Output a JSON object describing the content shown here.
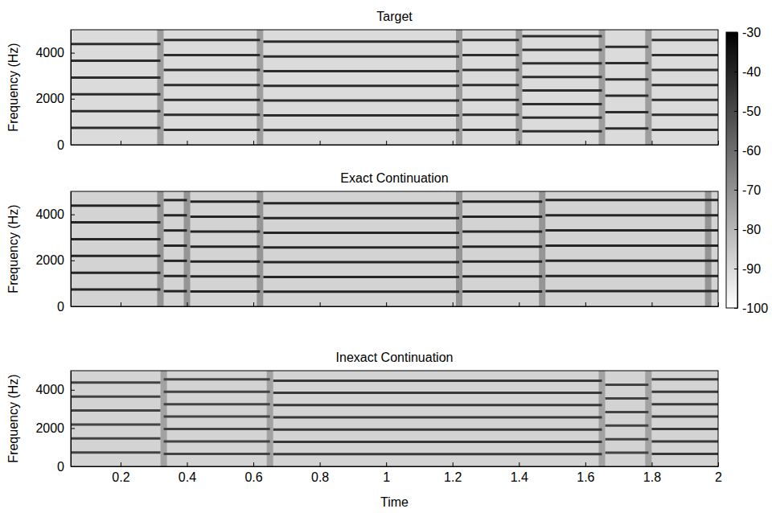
{
  "chart_data": [
    {
      "type": "spectrogram",
      "title": "Target",
      "y_label": "Frequency (Hz)",
      "xlim": [
        0.05,
        2
      ],
      "xticks": [
        0.2,
        0.4,
        0.6,
        0.8,
        1,
        1.2,
        1.4,
        1.6,
        1.8,
        2
      ],
      "ylim": [
        0,
        5000
      ],
      "yticks": [
        0,
        2000,
        4000
      ],
      "tick_labels": "y",
      "floor": -90,
      "onset_level": -70,
      "onsets": [
        0.32,
        0.62,
        1.22,
        1.4,
        1.65,
        1.79
      ],
      "notes": [
        {
          "start": 0.05,
          "end": 0.32,
          "level": -42,
          "harmonics": [
            730,
            1460,
            2190,
            2920,
            3650,
            4380
          ]
        },
        {
          "start": 0.33,
          "end": 0.62,
          "level": -42,
          "harmonics": [
            650,
            1300,
            1950,
            2600,
            3250,
            3900,
            4550
          ]
        },
        {
          "start": 0.63,
          "end": 1.22,
          "level": -42,
          "harmonics": [
            640,
            1280,
            1920,
            2560,
            3200,
            3840,
            4480
          ]
        },
        {
          "start": 1.23,
          "end": 1.4,
          "level": -42,
          "harmonics": [
            650,
            1300,
            1950,
            2600,
            3250,
            3900,
            4550
          ]
        },
        {
          "start": 1.41,
          "end": 1.65,
          "level": -42,
          "harmonics": [
            590,
            1180,
            1770,
            2360,
            2950,
            3540,
            4130,
            4720
          ]
        },
        {
          "start": 1.66,
          "end": 1.79,
          "level": -42,
          "harmonics": [
            710,
            1420,
            2130,
            2840,
            3550,
            4260
          ]
        },
        {
          "start": 1.8,
          "end": 2,
          "level": -42,
          "harmonics": [
            650,
            1300,
            1950,
            2600,
            3250,
            3900,
            4550
          ]
        }
      ],
      "colorbar": {
        "range": [
          -100,
          -30
        ],
        "ticks": [
          -30,
          -40,
          -50,
          -60,
          -70,
          -80,
          -90,
          -100
        ]
      }
    },
    {
      "type": "spectrogram",
      "title": "Exact Continuation",
      "y_label": "Frequency (Hz)",
      "xlim": [
        0.05,
        2
      ],
      "xticks": [
        0.2,
        0.4,
        0.6,
        0.8,
        1,
        1.2,
        1.4,
        1.6,
        1.8,
        2
      ],
      "ylim": [
        0,
        5000
      ],
      "yticks": [
        0,
        2000,
        4000
      ],
      "tick_labels": "y",
      "floor": -88,
      "onset_level": -68,
      "onsets": [
        0.32,
        0.4,
        0.62,
        1.22,
        1.47,
        1.97
      ],
      "notes": [
        {
          "start": 0.05,
          "end": 0.32,
          "level": -40,
          "harmonics": [
            730,
            1460,
            2190,
            2920,
            3650,
            4380
          ]
        },
        {
          "start": 0.33,
          "end": 0.4,
          "level": -40,
          "harmonics": [
            660,
            1320,
            1980,
            2640,
            3300,
            3960,
            4620
          ]
        },
        {
          "start": 0.41,
          "end": 0.62,
          "level": -40,
          "harmonics": [
            650,
            1300,
            1950,
            2600,
            3250,
            3900,
            4550
          ]
        },
        {
          "start": 0.63,
          "end": 1.22,
          "level": -40,
          "harmonics": [
            640,
            1280,
            1920,
            2560,
            3200,
            3840,
            4480
          ]
        },
        {
          "start": 1.23,
          "end": 1.47,
          "level": -40,
          "harmonics": [
            650,
            1300,
            1950,
            2600,
            3250,
            3900,
            4550
          ]
        },
        {
          "start": 1.48,
          "end": 2,
          "level": -40,
          "harmonics": [
            660,
            1320,
            1980,
            2640,
            3300,
            3960,
            4620
          ]
        }
      ]
    },
    {
      "type": "spectrogram",
      "title": "Inexact Continuation",
      "y_label": "Frequency (Hz)",
      "x_label": "Time",
      "xlim": [
        0.05,
        2
      ],
      "xticks": [
        0.2,
        0.4,
        0.6,
        0.8,
        1,
        1.2,
        1.4,
        1.6,
        1.8,
        2
      ],
      "ylim": [
        0,
        5000
      ],
      "yticks": [
        0,
        2000,
        4000
      ],
      "tick_labels": true,
      "floor": -88,
      "onset_level": -72,
      "onsets": [
        0.33,
        0.65,
        1.65,
        1.79
      ],
      "notes": [
        {
          "start": 0.05,
          "end": 0.32,
          "level": -48,
          "harmonics": [
            730,
            1460,
            2190,
            2920,
            3650,
            4380
          ]
        },
        {
          "start": 0.33,
          "end": 0.65,
          "level": -48,
          "harmonics": [
            650,
            1300,
            1950,
            2600,
            3250,
            3900,
            4550
          ]
        },
        {
          "start": 0.66,
          "end": 1.65,
          "level": -45,
          "harmonics": [
            640,
            1280,
            1920,
            2560,
            3200,
            3840,
            4480
          ]
        },
        {
          "start": 1.66,
          "end": 1.79,
          "level": -48,
          "harmonics": [
            710,
            1420,
            2130,
            2840,
            3550,
            4260
          ]
        },
        {
          "start": 1.8,
          "end": 2,
          "level": -45,
          "harmonics": [
            650,
            1300,
            1950,
            2600,
            3250,
            3900,
            4550
          ]
        }
      ]
    }
  ]
}
